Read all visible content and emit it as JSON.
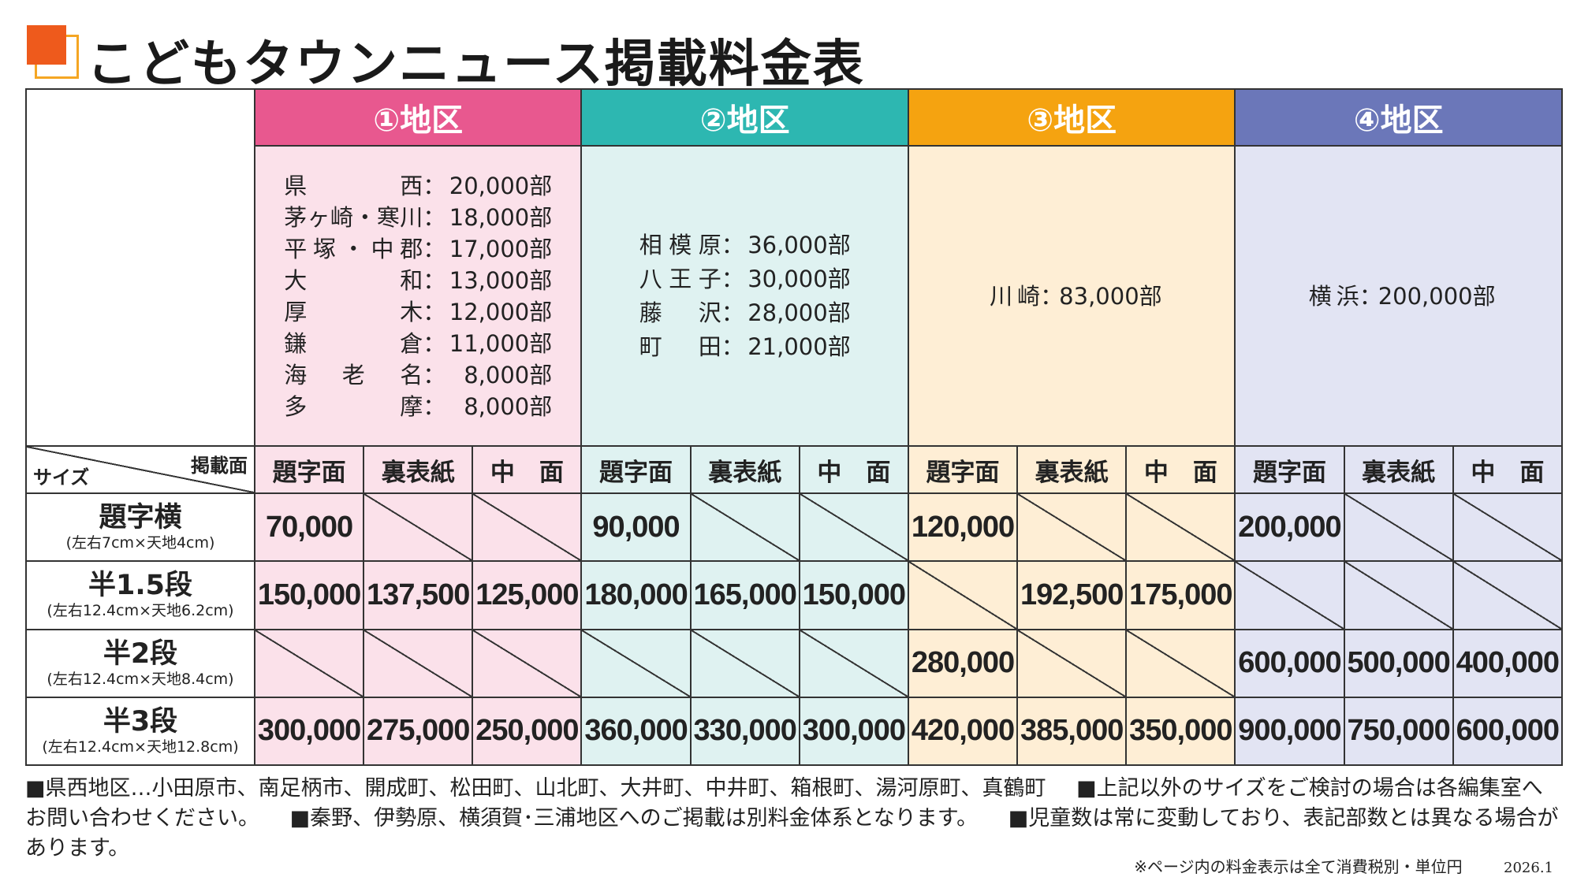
{
  "title": "こどもタウンニュース掲載料金表",
  "colors": {
    "accent": "#ee5a1c",
    "area1": "#e8588f",
    "area2": "#2db7b1",
    "area3": "#f5a310",
    "area4": "#6b77b9"
  },
  "areas": [
    {
      "label": "①地区",
      "circulation": [
        {
          "name": "県西",
          "amount": "20,000部"
        },
        {
          "name": "茅ヶ崎・寒川",
          "amount": "18,000部"
        },
        {
          "name": "平塚・中郡",
          "amount": "17,000部"
        },
        {
          "name": "大和",
          "amount": "13,000部"
        },
        {
          "name": "厚木",
          "amount": "12,000部"
        },
        {
          "name": "鎌倉",
          "amount": "11,000部"
        },
        {
          "name": "海老名",
          "amount": "8,000部"
        },
        {
          "name": "多摩",
          "amount": "8,000部"
        }
      ]
    },
    {
      "label": "②地区",
      "circulation": [
        {
          "name": "相模原",
          "amount": "36,000部"
        },
        {
          "name": "八王子",
          "amount": "30,000部"
        },
        {
          "name": "藤沢",
          "amount": "28,000部"
        },
        {
          "name": "町田",
          "amount": "21,000部"
        }
      ]
    },
    {
      "label": "③地区",
      "circulation": [
        {
          "name": "川崎",
          "amount": "83,000部"
        }
      ]
    },
    {
      "label": "④地区",
      "circulation": [
        {
          "name": "横浜",
          "amount": "200,000部"
        }
      ]
    }
  ],
  "header": {
    "corner_top": "掲載面",
    "corner_bottom": "サイズ",
    "separator": "："
  },
  "page_types": [
    "題字面",
    "裏表紙",
    "中　面"
  ],
  "sizes": [
    {
      "name": "題字横",
      "dims": "(左右7cm×天地4cm)",
      "prices": [
        "70,000",
        "",
        "",
        "90,000",
        "",
        "",
        "120,000",
        "",
        "",
        "200,000",
        "",
        ""
      ]
    },
    {
      "name": "半1.5段",
      "dims": "(左右12.4cm×天地6.2cm)",
      "prices": [
        "150,000",
        "137,500",
        "125,000",
        "180,000",
        "165,000",
        "150,000",
        "",
        "192,500",
        "175,000",
        "",
        "",
        ""
      ]
    },
    {
      "name": "半2段",
      "dims": "(左右12.4cm×天地8.4cm)",
      "prices": [
        "",
        "",
        "",
        "",
        "",
        "",
        "280,000",
        "",
        "",
        "600,000",
        "500,000",
        "400,000"
      ]
    },
    {
      "name": "半3段",
      "dims": "(左右12.4cm×天地12.8cm)",
      "prices": [
        "300,000",
        "275,000",
        "250,000",
        "360,000",
        "330,000",
        "300,000",
        "420,000",
        "385,000",
        "350,000",
        "900,000",
        "750,000",
        "600,000"
      ]
    }
  ],
  "notes": [
    "■県西地区…小田原市、南足柄市、開成町、松田町、山北町、大井町、中井町、箱根町、湯河原町、真鶴町",
    "■上記以外のサイズをご検討の場合は各編集室へお問い合わせください。",
    "■秦野、伊勢原、横須賀･三浦地区へのご掲載は別料金体系となります。",
    "■児童数は常に変動しており、表記部数とは異なる場合があります。"
  ],
  "footer": {
    "tax_note": "※ページ内の料金表示は全て消費税別・単位円",
    "date": "2026.1"
  }
}
